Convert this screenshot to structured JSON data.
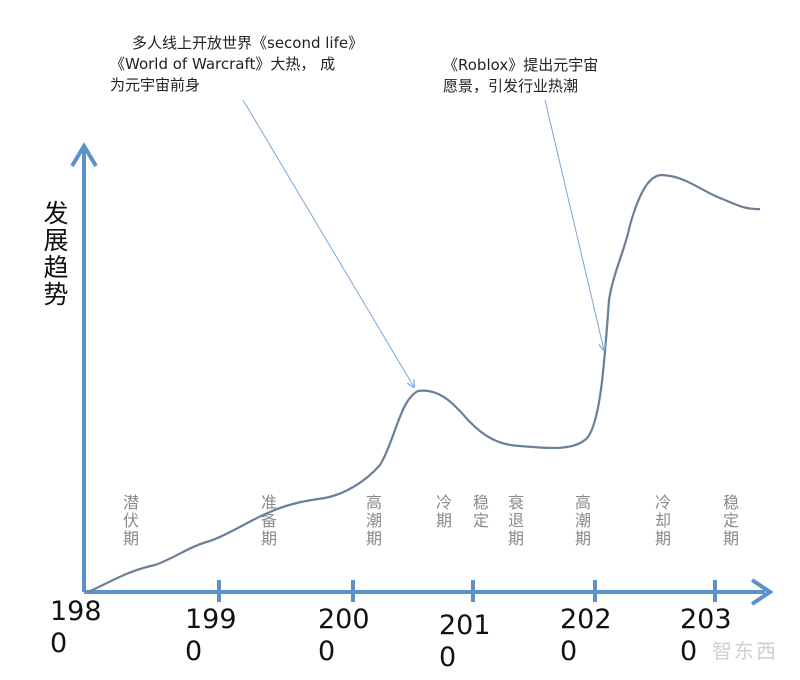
{
  "annotations": {
    "first_line1": "多人线上开放世界《second life》",
    "first_line2": "《World of Warcraft》大热， 成",
    "first_line3": "为元宇宙前身",
    "second_line1": "《Roblox》提出元宇宙",
    "second_line2": "愿景，引发行业热潮"
  },
  "y_axis_label": "发展趋势",
  "x_ticks": [
    "1980",
    "1990",
    "2000",
    "2010",
    "2020",
    "2030"
  ],
  "phases": [
    "潜伏期",
    "准备期",
    "高潮期",
    "冷期",
    "稳定",
    "衰退期",
    "高潮期",
    "冷却期",
    "稳定期"
  ],
  "watermark": "智东西",
  "colors": {
    "axis": "#5b93c9",
    "curve": "#6b7f99",
    "arrow": "#7aa7d6"
  },
  "chart_data": {
    "type": "line",
    "title": "",
    "xlabel": "",
    "ylabel": "发展趋势",
    "x": [
      "1980",
      "1990",
      "2000",
      "2010",
      "2020",
      "2030"
    ]
  }
}
